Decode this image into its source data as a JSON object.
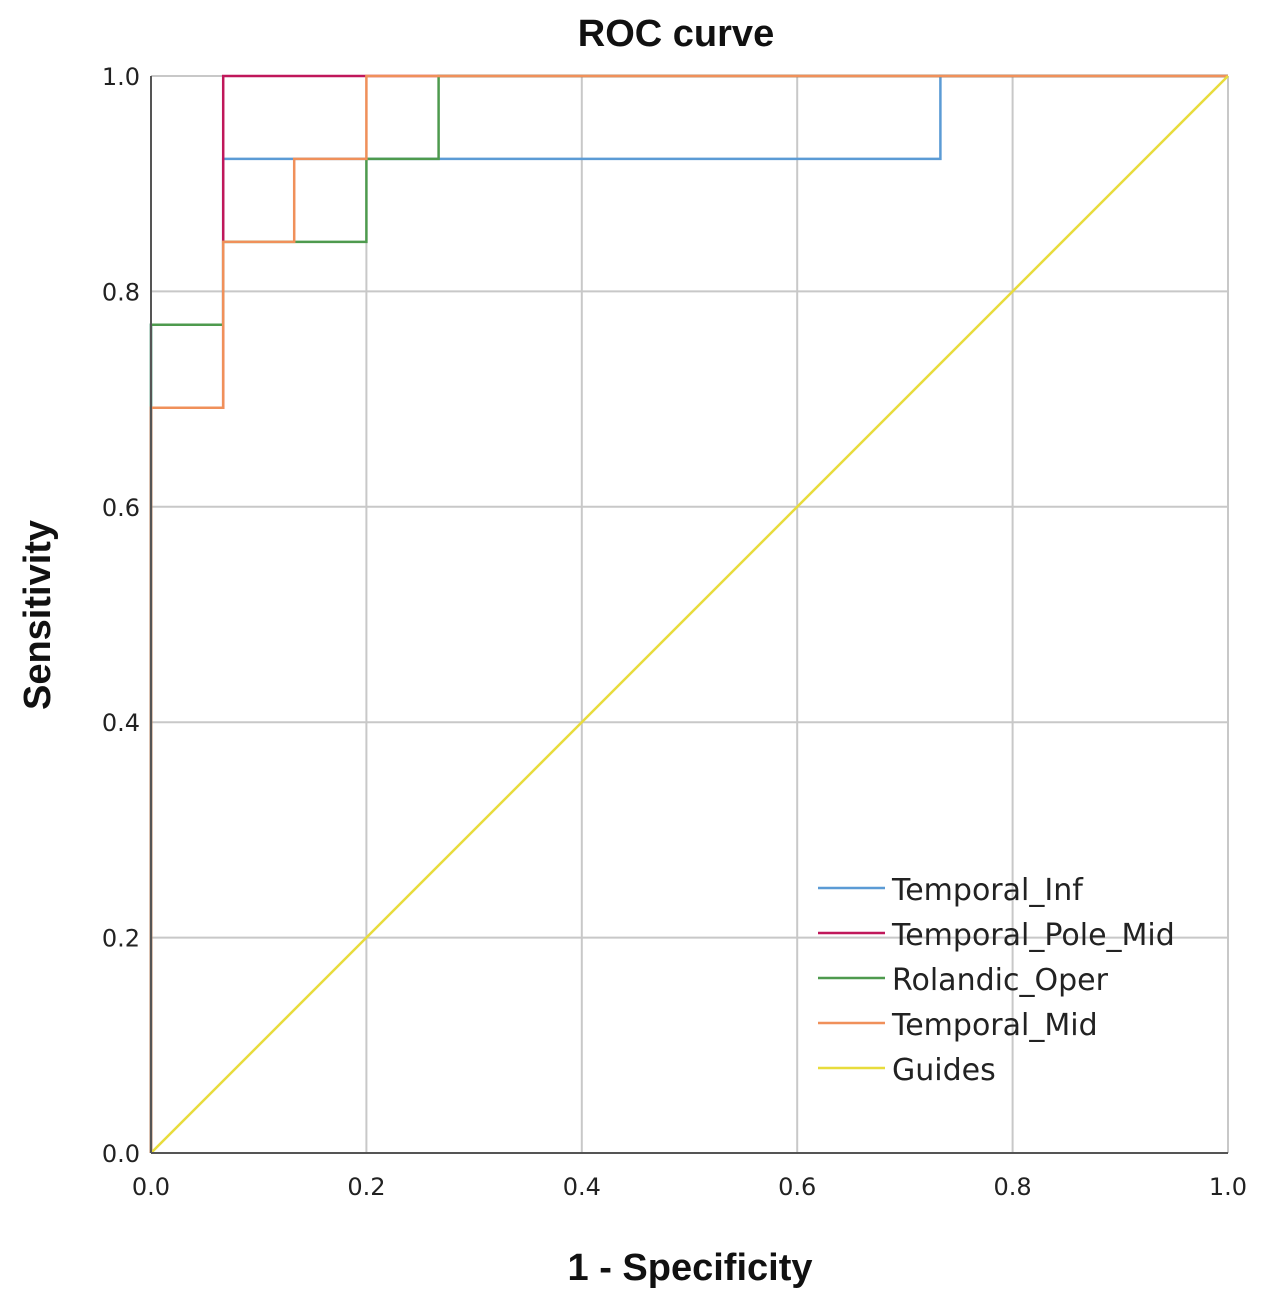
{
  "chart_data": {
    "type": "line",
    "title": "ROC curve",
    "xlabel": "1 - Specificity",
    "ylabel": "Sensitivity",
    "xlim": [
      0,
      1
    ],
    "ylim": [
      0,
      1
    ],
    "grid": true,
    "legend_position": "bottom-right",
    "x_ticks": [
      "0.0",
      "0.2",
      "0.4",
      "0.6",
      "0.8",
      "1.0"
    ],
    "y_ticks": [
      "0.0",
      "0.2",
      "0.4",
      "0.6",
      "0.8",
      "1.0"
    ],
    "series": [
      {
        "name": "Temporal_Inf",
        "color": "#5b9bd5",
        "points": [
          [
            0,
            0
          ],
          [
            0,
            0.769
          ],
          [
            0.067,
            0.769
          ],
          [
            0.067,
            0.923
          ],
          [
            0.733,
            0.923
          ],
          [
            0.733,
            1.0
          ],
          [
            1,
            1
          ]
        ]
      },
      {
        "name": "Temporal_Pole_Mid",
        "color": "#c0175a",
        "points": [
          [
            0,
            0
          ],
          [
            0,
            0.692
          ],
          [
            0.067,
            0.692
          ],
          [
            0.067,
            1.0
          ],
          [
            1,
            1
          ]
        ]
      },
      {
        "name": "Rolandic_Oper",
        "color": "#4e9a4e",
        "points": [
          [
            0,
            0
          ],
          [
            0,
            0.769
          ],
          [
            0.067,
            0.769
          ],
          [
            0.067,
            0.846
          ],
          [
            0.2,
            0.846
          ],
          [
            0.2,
            0.923
          ],
          [
            0.267,
            0.923
          ],
          [
            0.267,
            1.0
          ],
          [
            1,
            1
          ]
        ]
      },
      {
        "name": "Temporal_Mid",
        "color": "#f0905a",
        "points": [
          [
            0,
            0
          ],
          [
            0,
            0.692
          ],
          [
            0.067,
            0.692
          ],
          [
            0.067,
            0.846
          ],
          [
            0.133,
            0.846
          ],
          [
            0.133,
            0.923
          ],
          [
            0.2,
            0.923
          ],
          [
            0.2,
            1.0
          ],
          [
            1,
            1
          ]
        ]
      },
      {
        "name": "Guides",
        "color": "#e8dc3c",
        "points": [
          [
            0,
            0
          ],
          [
            1,
            1
          ]
        ]
      }
    ]
  }
}
